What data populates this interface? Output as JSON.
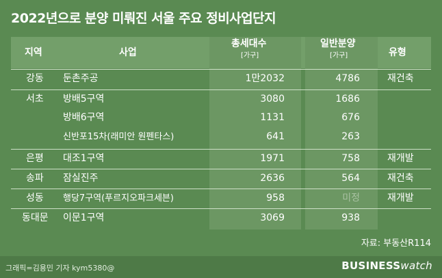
{
  "title": "2022년으로 분양 미뤄진 서울 주요 정비사업단지",
  "headers": {
    "region": "지역",
    "project": "사업",
    "total": "총세대수",
    "total_unit": "[가구]",
    "general": "일반분양",
    "general_unit": "[가구]",
    "type": "유형"
  },
  "rows": [
    {
      "region": "강동",
      "project": "둔촌주공",
      "total": "1만2032",
      "general": "4786",
      "type": "재건축"
    },
    {
      "region": "서초",
      "project": "방배5구역",
      "total": "3080",
      "general": "1686",
      "type": ""
    },
    {
      "region": "",
      "project": "방배6구역",
      "total": "1131",
      "general": "676",
      "type": ""
    },
    {
      "region": "",
      "project": "신반포15차(래미안 원펜타스)",
      "total": "641",
      "general": "263",
      "type": ""
    },
    {
      "region": "은평",
      "project": "대조1구역",
      "total": "1971",
      "general": "758",
      "type": "재개발"
    },
    {
      "region": "송파",
      "project": "잠실진주",
      "total": "2636",
      "general": "564",
      "type": "재건축"
    },
    {
      "region": "성동",
      "project": "행당7구역(푸르지오파크세븐)",
      "total": "958",
      "general": "미정",
      "type": "재개발"
    },
    {
      "region": "동대문",
      "project": "이문1구역",
      "total": "3069",
      "general": "938",
      "type": ""
    }
  ],
  "source": "자료: 부동산R114",
  "credit": "그래픽=김용민 기자 kym5380@",
  "logo": {
    "part1": "BUSINESS",
    "part2": "watch"
  },
  "colors": {
    "background": "#5a8a52",
    "header_band": "#739f6a",
    "column_highlight": "#6c9763"
  }
}
